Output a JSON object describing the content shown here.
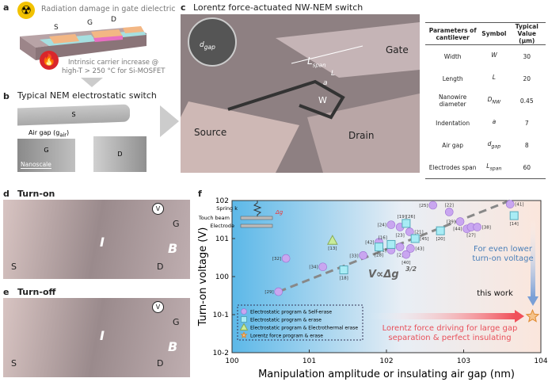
{
  "panels": {
    "a": {
      "label": "a",
      "radiation": "Radiation damage in gate dielectric",
      "heat": "Intrinsic carrier increase @",
      "heat2": "high-T > 250 °C for Si-MOSFET",
      "S": "S",
      "G": "G",
      "D": "D",
      "icons": [
        "radiation-icon",
        "fire-icon"
      ]
    },
    "b": {
      "label": "b",
      "title": "Typical NEM electrostatic switch",
      "S": "S",
      "G": "G",
      "D": "D",
      "airgap": "Air gap (g",
      "airgap_sub": "air",
      "airgap_end": ")",
      "scale": "Nanoscale"
    },
    "c": {
      "label": "c",
      "title": "Lorentz force-actuated NW-NEM switch",
      "source": "Source",
      "gate": "Gate",
      "drain": "Drain",
      "lspan": "L",
      "lspan_sub": "span",
      "W": "W",
      "L": "L",
      "a": "a",
      "dgap": "d",
      "dgap_sub": "gap"
    },
    "d": {
      "label": "d",
      "title": "Turn-on",
      "S": "S",
      "D": "D",
      "G": "G",
      "V": "V",
      "I": "I",
      "B": "B"
    },
    "e": {
      "label": "e",
      "title": "Turn-off",
      "S": "S",
      "D": "D",
      "G": "G",
      "V": "V",
      "I": "I",
      "B": "B"
    },
    "f": {
      "label": "f"
    }
  },
  "table": {
    "headers": [
      "Parameters of cantilever",
      "Symbol",
      "Typical Value (μm)"
    ],
    "rows": [
      {
        "param": "Width",
        "sym": "W",
        "sub": "",
        "val": "30"
      },
      {
        "param": "Length",
        "sym": "L",
        "sub": "",
        "val": "20"
      },
      {
        "param": "Nanowire diameter",
        "sym": "D",
        "sub": "NW",
        "val": "0.45"
      },
      {
        "param": "Indentation",
        "sym": "a",
        "sub": "",
        "val": "7"
      },
      {
        "param": "Air gap",
        "sym": "d",
        "sub": "gap",
        "val": "8"
      },
      {
        "param": "Electrodes span",
        "sym": "L",
        "sub": "span",
        "val": "60"
      }
    ]
  },
  "chart_data": {
    "type": "scatter",
    "xlabel": "Manipulation amplitude or insulating air gap (nm)",
    "ylabel": "Turn-on voltage (V)",
    "xscale": "log",
    "yscale": "log",
    "xlim": [
      1,
      10000
    ],
    "ylim": [
      0.01,
      100
    ],
    "xticks": [
      "10^0",
      "10^1",
      "10^2",
      "10^3",
      "10^4"
    ],
    "yticks": [
      "10^-2",
      "10^-1",
      "10^0",
      "10^1",
      "10^2"
    ],
    "series": [
      {
        "name": "Electrostatic program & Self-erase",
        "marker": "circle",
        "color": "#c9a6f0",
        "points": [
          {
            "ref": "[29]",
            "x": 4,
            "y": 0.4
          },
          {
            "ref": "[32]",
            "x": 5,
            "y": 3
          },
          {
            "ref": "[34]",
            "x": 15,
            "y": 1.8
          },
          {
            "ref": "[33]",
            "x": 50,
            "y": 3.6
          },
          {
            "ref": "[42]",
            "x": 80,
            "y": 8
          },
          {
            "ref": "[31]",
            "x": 115,
            "y": 5
          },
          {
            "ref": "[2]",
            "x": 150,
            "y": 6
          },
          {
            "ref": "[40]",
            "x": 180,
            "y": 3.8
          },
          {
            "ref": "[43]",
            "x": 205,
            "y": 5.5
          },
          {
            "ref": "[24]",
            "x": 115,
            "y": 23
          },
          {
            "ref": "[23]",
            "x": 150,
            "y": 20
          },
          {
            "ref": "[21]",
            "x": 200,
            "y": 15
          },
          {
            "ref": "[25]",
            "x": 400,
            "y": 75
          },
          {
            "ref": "[22]",
            "x": 650,
            "y": 50
          },
          {
            "ref": "[39]",
            "x": 900,
            "y": 28
          },
          {
            "ref": "[44]",
            "x": 1100,
            "y": 18
          },
          {
            "ref": "[27]",
            "x": 1250,
            "y": 20
          },
          {
            "ref": "[38]",
            "x": 1500,
            "y": 20
          },
          {
            "ref": "[41]",
            "x": 4000,
            "y": 80
          }
        ]
      },
      {
        "name": "Electrostatic program & erase",
        "marker": "square",
        "color": "#a8ecf5",
        "points": [
          {
            "ref": "[18]",
            "x": 28,
            "y": 1.5
          },
          {
            "ref": "[28]",
            "x": 80,
            "y": 6
          },
          {
            "ref": "[16]",
            "x": 115,
            "y": 7
          },
          {
            "ref": "[19][26]",
            "x": 180,
            "y": 25
          },
          {
            "ref": "[45]",
            "x": 235,
            "y": 10
          },
          {
            "ref": "[20]",
            "x": 500,
            "y": 16
          },
          {
            "ref": "[14]",
            "x": 4500,
            "y": 40
          }
        ]
      },
      {
        "name": "Electrostatic program & Electrothermal erase",
        "marker": "triangle",
        "color": "#c8ec9a",
        "points": [
          {
            "ref": "[13]",
            "x": 20,
            "y": 9
          }
        ]
      },
      {
        "name": "Lorentz force program & erase",
        "marker": "star",
        "color": "#f5c28a",
        "points": [
          {
            "ref": "this work",
            "x": 7800,
            "y": 0.09
          }
        ]
      }
    ],
    "fit": {
      "label": "V∝Δg",
      "exp": "3/2",
      "from": [
        4,
        0.4
      ],
      "to": [
        4000,
        100
      ]
    },
    "annotations": {
      "this_work": "this work",
      "lower": "For even lower",
      "lower2": "turn-on voltage",
      "lorentz": "Lorentz force driving for large gap",
      "lorentz2": "separation & perfect insulating",
      "spring": "Spring k",
      "touch": "Touch beam",
      "electrode": "Electrode",
      "dg": "Δg"
    }
  }
}
